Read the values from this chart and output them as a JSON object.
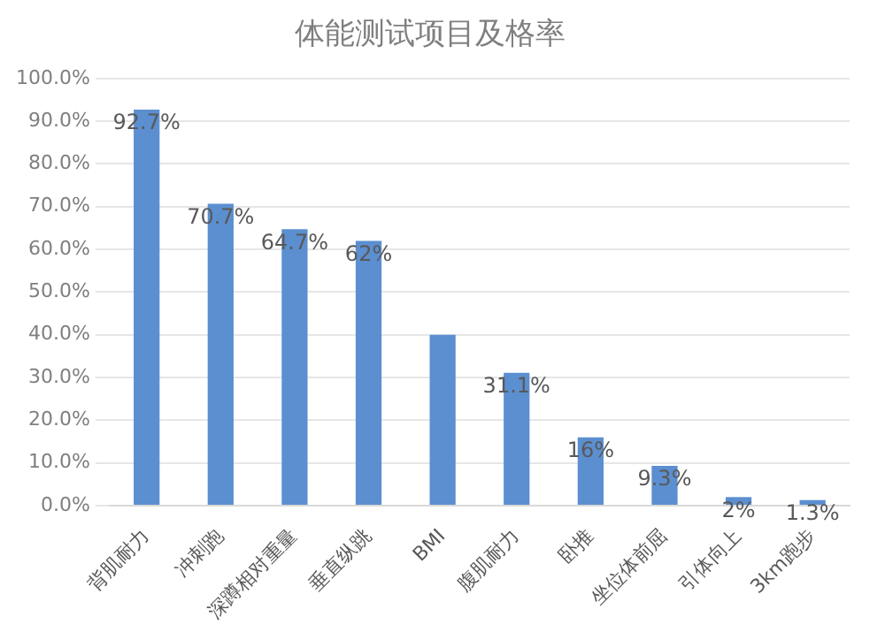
{
  "chart_data": {
    "type": "bar",
    "title": "体能测试项目及格率",
    "categories": [
      "背肌耐力",
      "冲刺跑",
      "深蹲相对重量",
      "垂直纵跳",
      "BMI",
      "腹肌耐力",
      "卧推",
      "坐位体前屈",
      "引体向上",
      "3km跑步"
    ],
    "values": [
      92.7,
      70.7,
      64.7,
      62,
      40,
      31.1,
      16,
      9.3,
      2,
      1.3
    ],
    "value_labels": [
      "92.7%",
      "70.7%",
      "64.7%",
      "62%",
      null,
      "31.1%",
      "16%",
      "9.3%",
      "2%",
      "1.3%"
    ],
    "color": "#5b8fd0",
    "ylim": [
      0,
      100
    ],
    "yticks": [
      {
        "value": 0,
        "label": "0.0%"
      },
      {
        "value": 10,
        "label": "10.0%"
      },
      {
        "value": 20,
        "label": "20.0%"
      },
      {
        "value": 30,
        "label": "30.0%"
      },
      {
        "value": 40,
        "label": "40.0%"
      },
      {
        "value": 50,
        "label": "50.0%"
      },
      {
        "value": 60,
        "label": "60.0%"
      },
      {
        "value": 70,
        "label": "70.0%"
      },
      {
        "value": 80,
        "label": "80.0%"
      },
      {
        "value": 90,
        "label": "90.0%"
      },
      {
        "value": 100,
        "label": "100.0%"
      }
    ],
    "grid": "y"
  }
}
